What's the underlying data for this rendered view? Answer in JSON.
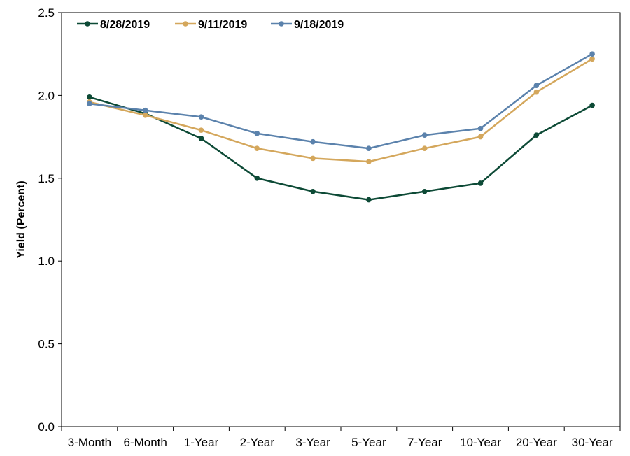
{
  "chart_data": {
    "type": "line",
    "title": "",
    "xlabel": "",
    "ylabel": "Yield (Percent)",
    "categories": [
      "3-Month",
      "6-Month",
      "1-Year",
      "2-Year",
      "3-Year",
      "5-Year",
      "7-Year",
      "10-Year",
      "20-Year",
      "30-Year"
    ],
    "ylim": [
      0,
      2.5
    ],
    "yticks": [
      "0.0",
      "0.5",
      "1.0",
      "1.5",
      "2.0",
      "2.5"
    ],
    "grid": false,
    "legend_position": "top-left",
    "series": [
      {
        "name": "8/28/2019",
        "color": "#0d4a36",
        "values": [
          1.99,
          1.89,
          1.74,
          1.5,
          1.42,
          1.37,
          1.42,
          1.47,
          1.76,
          1.94
        ]
      },
      {
        "name": "9/11/2019",
        "color": "#d4a75c",
        "values": [
          1.96,
          1.88,
          1.79,
          1.68,
          1.62,
          1.6,
          1.68,
          1.75,
          2.02,
          2.22
        ]
      },
      {
        "name": "9/18/2019",
        "color": "#5b82ac",
        "values": [
          1.95,
          1.91,
          1.87,
          1.77,
          1.72,
          1.68,
          1.76,
          1.8,
          2.06,
          2.25
        ]
      }
    ]
  }
}
